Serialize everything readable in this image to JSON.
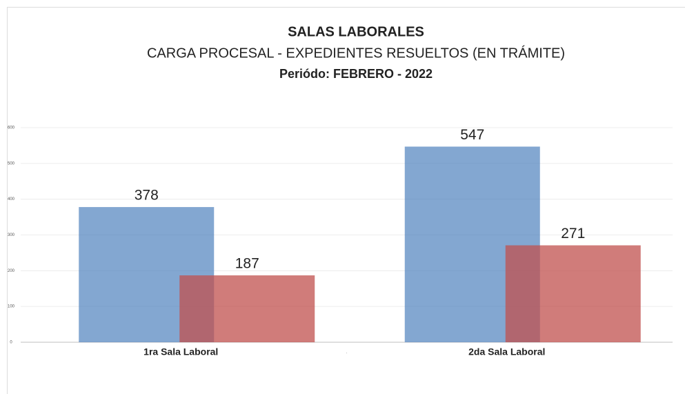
{
  "chart_data": {
    "type": "bar",
    "title": "SALAS LABORALES",
    "subtitle": "CARGA  PROCESAL - EXPEDIENTES RESUELTOS (EN TRÁMITE)",
    "period": "Periódo: FEBRERO - 2022",
    "categories": [
      "1ra Sala Laboral",
      "2da Sala Laboral"
    ],
    "series": [
      {
        "color": "#4f81bd",
        "values": [
          378,
          547
        ]
      },
      {
        "color": "#c0504d",
        "values": [
          187,
          271
        ]
      }
    ],
    "ylim": [
      0,
      600
    ],
    "yticks": [
      0,
      100,
      200,
      300,
      400,
      500,
      600
    ],
    "grid": true
  }
}
